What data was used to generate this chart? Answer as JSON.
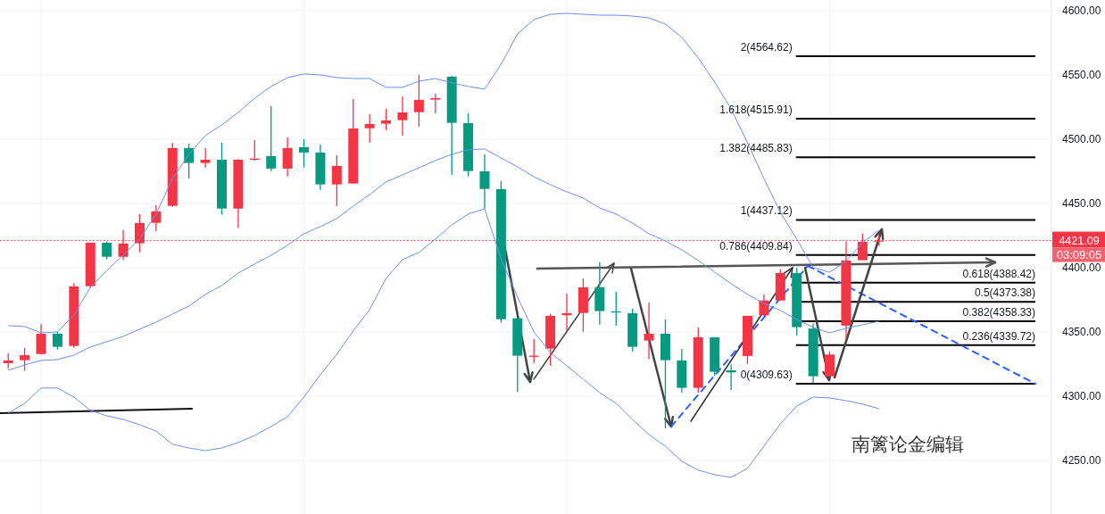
{
  "chart_data": {
    "type": "candlestick",
    "categories": [
      null,
      null,
      null,
      null,
      null,
      null,
      null,
      null,
      null,
      null,
      null,
      null,
      null,
      null,
      null,
      null,
      null,
      null,
      null,
      null,
      null,
      null,
      null,
      null,
      null,
      null,
      null,
      null,
      null,
      null,
      null,
      null,
      null,
      null,
      null,
      null,
      null,
      null,
      null,
      null,
      null,
      null,
      null,
      null,
      null,
      null,
      null,
      null,
      null,
      null,
      null,
      null,
      null,
      null,
      null,
      null,
      null,
      null,
      null,
      null,
      null,
      null,
      null,
      null
    ],
    "ohlc": [
      [
        4325.7,
        4333.3,
        4321.5,
        4327.8
      ],
      [
        4328.0,
        4337.5,
        4319.7,
        4331.9
      ],
      [
        4332.8,
        4356.0,
        4332.2,
        4348.6
      ],
      [
        4348.6,
        4350.2,
        4336.3,
        4338.4
      ],
      [
        4339.1,
        4388.0,
        4337.7,
        4385.4
      ],
      [
        4385.6,
        4419.4,
        4384.2,
        4419.4
      ],
      [
        4419.4,
        4420.3,
        4406.5,
        4408.5
      ],
      [
        4408.5,
        4429.2,
        4405.8,
        4418.8
      ],
      [
        4419.0,
        4441.7,
        4412.0,
        4434.7
      ],
      [
        4434.9,
        4448.6,
        4428.5,
        4443.8
      ],
      [
        4448.1,
        4497.2,
        4447.2,
        4493.1
      ],
      [
        4493.1,
        4496.5,
        4469.4,
        4481.5
      ],
      [
        4481.5,
        4493.1,
        4478.0,
        4484.0
      ],
      [
        4484.0,
        4497.2,
        4441.2,
        4446.0
      ],
      [
        4446.0,
        4484.5,
        4430.8,
        4484.0
      ],
      [
        4484.0,
        4499.3,
        4483.3,
        4484.9
      ],
      [
        4486.8,
        4525.7,
        4475.2,
        4477.1
      ],
      [
        4477.1,
        4501.4,
        4471.0,
        4493.1
      ],
      [
        4493.8,
        4500.0,
        4478.0,
        4489.6
      ],
      [
        4489.6,
        4495.8,
        4460.6,
        4464.8
      ],
      [
        4464.8,
        4487.5,
        4447.9,
        4479.2
      ],
      [
        4465.5,
        4531.3,
        4465.5,
        4508.3
      ],
      [
        4508.5,
        4519.4,
        4497.4,
        4511.8
      ],
      [
        4512.0,
        4523.6,
        4506.9,
        4514.6
      ],
      [
        4514.8,
        4533.3,
        4502.8,
        4520.8
      ],
      [
        4521.0,
        4550.0,
        4509.7,
        4530.6
      ],
      [
        4530.8,
        4535.4,
        4520.1,
        4531.9
      ],
      [
        4548.6,
        4549.3,
        4472.2,
        4512.7
      ],
      [
        4512.5,
        4520.1,
        4471.0,
        4475.2
      ],
      [
        4475.0,
        4488.2,
        4446.0,
        4461.3
      ],
      [
        4461.1,
        4467.4,
        4357.2,
        4359.9
      ],
      [
        4360.6,
        4360.6,
        4303.3,
        4331.5
      ],
      [
        4330.6,
        4344.4,
        4325.9,
        4331.5
      ],
      [
        4337.0,
        4364.1,
        4323.6,
        4362.5
      ],
      [
        4363.0,
        4379.9,
        4351.4,
        4364.6
      ],
      [
        4364.8,
        4391.7,
        4350.2,
        4384.7
      ],
      [
        4384.7,
        4404.2,
        4355.6,
        4366.2
      ],
      [
        4366.0,
        4381.3,
        4354.9,
        4365.1
      ],
      [
        4364.6,
        4368.1,
        4334.7,
        4338.4
      ],
      [
        4343.3,
        4372.9,
        4328.7,
        4348.6
      ],
      [
        4348.6,
        4359.7,
        4275.0,
        4328.0
      ],
      [
        4327.8,
        4336.8,
        4302.8,
        4306.5
      ],
      [
        4306.5,
        4353.5,
        4302.8,
        4345.8
      ],
      [
        4345.8,
        4345.8,
        4316.0,
        4319.0
      ],
      [
        4320.1,
        4324.8,
        4304.7,
        4318.5
      ],
      [
        4331.3,
        4362.5,
        4324.8,
        4362.5
      ],
      [
        4363.0,
        4379.2,
        4362.5,
        4374.5
      ],
      [
        4374.5,
        4398.8,
        4374.1,
        4395.8
      ],
      [
        4395.8,
        4400.0,
        4347.2,
        4353.7
      ],
      [
        4352.6,
        4356.5,
        4310.2,
        4315.5
      ],
      [
        4315.5,
        4334.7,
        4315.5,
        4332.4
      ],
      [
        4354.9,
        4420.4,
        4344.0,
        4405.6
      ],
      [
        4405.8,
        4426.6,
        4405.8,
        4420.1
      ],
      [
        4420.5,
        4425.5,
        4416.9,
        4421.09
      ],
      null,
      null,
      null,
      null,
      null,
      null,
      null,
      null,
      null,
      null
    ],
    "colors": [
      "#f23645",
      "#f23645",
      "#f23645",
      "#089981",
      "#f23645",
      "#f23645",
      "#089981",
      "#f23645",
      "#f23645",
      "#f23645",
      "#f23645",
      "#089981",
      "#f23645",
      "#089981",
      "#f23645",
      "#f23645",
      "#089981",
      "#f23645",
      "#089981",
      "#089981",
      "#f23645",
      "#f23645",
      "#f23645",
      "#f23645",
      "#f23645",
      "#f23645",
      "#f23645",
      "#089981",
      "#089981",
      "#089981",
      "#089981",
      "#089981",
      "#f23645",
      "#f23645",
      "#f23645",
      "#f23645",
      "#089981",
      "#089981",
      "#089981",
      "#f23645",
      "#089981",
      "#089981",
      "#f23645",
      "#089981",
      "#089981",
      "#f23645",
      "#f23645",
      "#f23645",
      "#089981",
      "#089981",
      "#f23645",
      "#f23645",
      "#f23645",
      "#f23645",
      null,
      null,
      null,
      null,
      null,
      null,
      null,
      null,
      null,
      null
    ],
    "series": [
      {
        "type": "line",
        "color": "#6a8ff2",
        "values": [
          4354.9,
          4354.2,
          4349.3,
          4350.0,
          4363.2,
          4384.7,
          4397.9,
          4409.7,
          4422.2,
          4441.7,
          4469.4,
          4488.2,
          4502.8,
          4511.1,
          4520.8,
          4531.9,
          4541.0,
          4547.9,
          4550.7,
          4550.0,
          4547.9,
          4547.2,
          4547.2,
          4540.3,
          4540.3,
          4545.1,
          4547.2,
          4543.8,
          4541.0,
          4538.9,
          4558.3,
          4581.9,
          4593.1,
          4597.2,
          4597.9,
          4597.2,
          4596.5,
          4596.5,
          4595.8,
          4594.4,
          4589.6,
          4579.2,
          4563.2,
          4544.4,
          4523.6,
          4497.2,
          4469.4,
          4443.1,
          4422.2,
          4400.0,
          4396.5,
          4404.9,
          4419.4,
          4429.2,
          null,
          null,
          null,
          null,
          null,
          null,
          null,
          null,
          null,
          null
        ]
      },
      {
        "type": "line",
        "color": "#6a8ff2",
        "values": [
          4320.1,
          4324.3,
          4327.8,
          4328.5,
          4331.9,
          4338.2,
          4342.4,
          4346.5,
          4352.1,
          4357.6,
          4363.9,
          4370.1,
          4379.2,
          4386.1,
          4395.8,
          4402.8,
          4409.7,
          4417.4,
          4426.4,
          4431.9,
          4438.2,
          4447.9,
          4456.9,
          4466.7,
          4472.2,
          4477.8,
          4483.3,
          4488.2,
          4491.7,
          4492.4,
          4485.4,
          4478.5,
          4470.8,
          4464.6,
          4459.0,
          4454.2,
          4446.5,
          4441.7,
          4434.7,
          4426.4,
          4420.8,
          4413.9,
          4405.6,
          4396.5,
          4387.5,
          4379.2,
          4372.2,
          4366.7,
          4359.7,
          4353.5,
          4349.3,
          4352.8,
          4355.6,
          4358.3,
          null,
          null,
          null,
          null,
          null,
          null,
          null,
          null,
          null,
          null
        ]
      },
      {
        "type": "line",
        "color": "#6a8ff2",
        "values": [
          4286.8,
          4294.4,
          4306.3,
          4306.3,
          4299.3,
          4288.9,
          4284.7,
          4281.9,
          4277.8,
          4272.9,
          4262.5,
          4259.7,
          4257.6,
          4259.7,
          4263.9,
          4269.4,
          4276.4,
          4284.0,
          4299.3,
          4316.7,
          4332.6,
          4350.7,
          4367.4,
          4391.7,
          4406.3,
          4411.8,
          4422.2,
          4433.3,
          4441.7,
          4445.8,
          4406.9,
          4377.1,
          4350.0,
          4334.0,
          4323.6,
          4313.2,
          4302.8,
          4294.4,
          4281.9,
          4270.1,
          4261.1,
          4249.3,
          4242.4,
          4238.9,
          4236.8,
          4243.8,
          4261.1,
          4278.5,
          4292.4,
          4299.3,
          4298.6,
          4296.5,
          4293.8,
          4290.3,
          null,
          null,
          null,
          null,
          null,
          null,
          null,
          null,
          null,
          null
        ]
      }
    ],
    "ylim": [
      4208.3,
      4608.3
    ],
    "yticks": [
      {
        "value": 4250,
        "label": "4250.00"
      },
      {
        "value": 4300,
        "label": "4300.00"
      },
      {
        "value": 4350,
        "label": "4350.00"
      },
      {
        "value": 4400,
        "label": "4400.00"
      },
      {
        "value": 4450,
        "label": "4450.00"
      },
      {
        "value": 4500,
        "label": "4500.00"
      },
      {
        "value": 4550,
        "label": "4550.00"
      },
      {
        "value": 4600,
        "label": "4600.00"
      }
    ],
    "grid": true,
    "ref_lines": [
      {
        "axis": "y",
        "value": 4564.62,
        "label": "2(4564.62)",
        "color": "#000000"
      },
      {
        "axis": "y",
        "value": 4515.91,
        "label": "1.618(4515.91)",
        "color": "#000000"
      },
      {
        "axis": "y",
        "value": 4485.83,
        "label": "1.382(4485.83)",
        "color": "#000000"
      },
      {
        "axis": "y",
        "value": 4437.12,
        "label": "1(4437.12)",
        "color": "#000000"
      },
      {
        "axis": "y",
        "value": 4409.84,
        "label": "0.786(4409.84)",
        "color": "#000000"
      },
      {
        "axis": "y",
        "value": 4388.42,
        "label": "0.618(4388.42)",
        "color": "#000000"
      },
      {
        "axis": "y",
        "value": 4373.38,
        "label": "0.5(4373.38)",
        "color": "#000000"
      },
      {
        "axis": "y",
        "value": 4358.33,
        "label": "0.382(4358.33)",
        "color": "#000000"
      },
      {
        "axis": "y",
        "value": 4339.72,
        "label": "0.236(4339.72)",
        "color": "#000000"
      },
      {
        "axis": "y",
        "value": 4309.63,
        "label": "0(4309.63)",
        "color": "#000000"
      },
      {
        "axis": "y",
        "value": 4421.09,
        "label": "4421.09",
        "color": "#f23645",
        "line_style": "dotted"
      }
    ],
    "annotations": [
      "03:09:05",
      "南篱论金编辑"
    ]
  }
}
